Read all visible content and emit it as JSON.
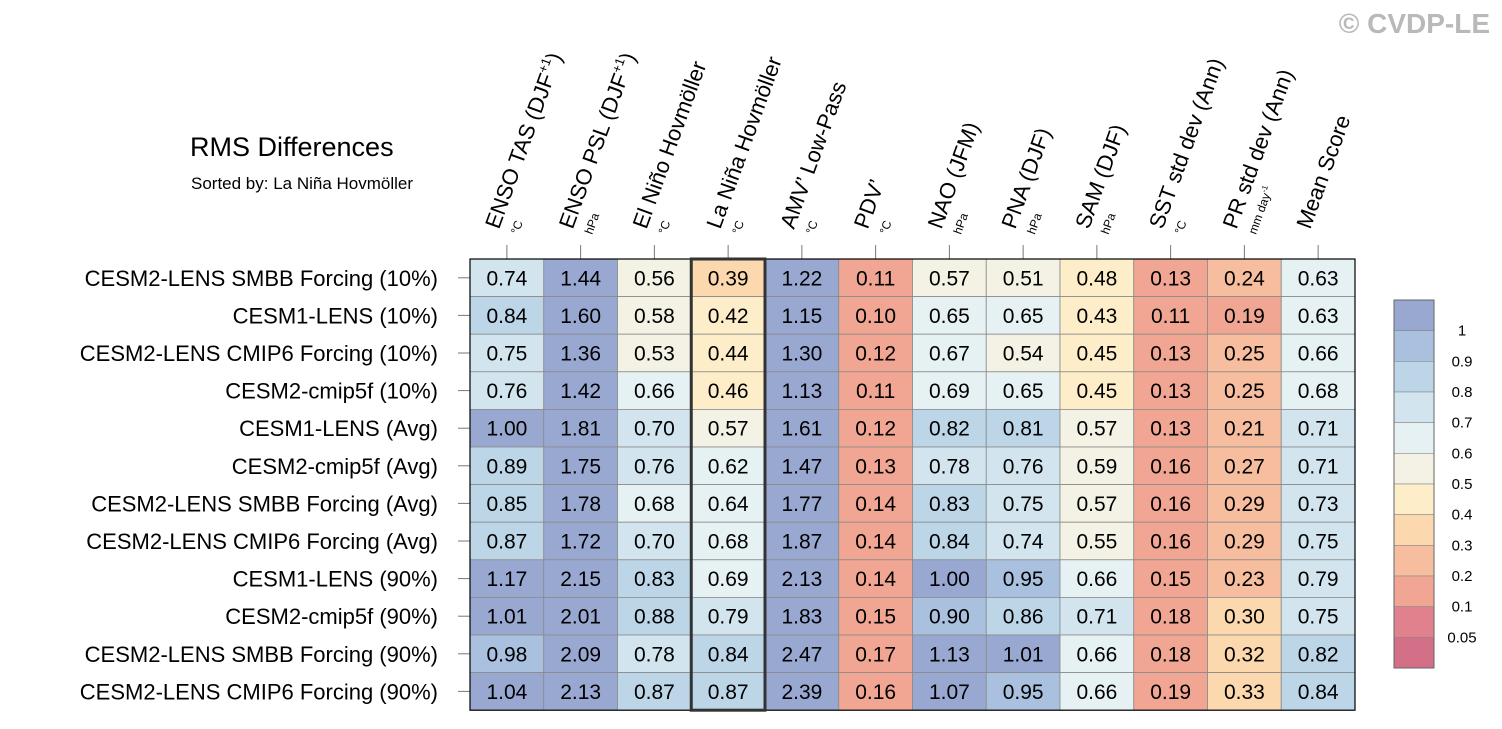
{
  "copyright": "© CVDP-LE",
  "chart_data": {
    "type": "heatmap",
    "title": "RMS Differences",
    "subtitle": "Sorted by: La Niña Hovmöller",
    "sorted_column_index": 3,
    "columns": [
      {
        "name": "ENSO TAS (DJF",
        "sup": "+1",
        "close": ")",
        "unit": "°C"
      },
      {
        "name": "ENSO PSL (DJF",
        "sup": "+1",
        "close": ")",
        "unit": "hPa"
      },
      {
        "name": "El Niño Hovmöller",
        "sup": "",
        "close": "",
        "unit": "°C"
      },
      {
        "name": "La Niña Hovmöller",
        "sup": "",
        "close": "",
        "unit": "°C"
      },
      {
        "name": "AMV’ Low-Pass",
        "sup": "",
        "close": "",
        "unit": "°C"
      },
      {
        "name": "PDV’",
        "sup": "",
        "close": "",
        "unit": "°C"
      },
      {
        "name": "NAO (JFM)",
        "sup": "",
        "close": "",
        "unit": "hPa"
      },
      {
        "name": "PNA (DJF)",
        "sup": "",
        "close": "",
        "unit": "hPa"
      },
      {
        "name": "SAM (DJF)",
        "sup": "",
        "close": "",
        "unit": "hPa"
      },
      {
        "name": "SST std dev (Ann)",
        "sup": "",
        "close": "",
        "unit": "°C"
      },
      {
        "name": "PR std dev (Ann)",
        "sup": "",
        "close": "",
        "unit": "mm day",
        "unit_sup": "-1"
      },
      {
        "name": "Mean Score",
        "sup": "",
        "close": "",
        "unit": ""
      }
    ],
    "rows": [
      "CESM2-LENS SMBB Forcing (10%)",
      "CESM1-LENS (10%)",
      "CESM2-LENS CMIP6 Forcing (10%)",
      "CESM2-cmip5f (10%)",
      "CESM1-LENS (Avg)",
      "CESM2-cmip5f (Avg)",
      "CESM2-LENS SMBB Forcing (Avg)",
      "CESM2-LENS CMIP6 Forcing (Avg)",
      "CESM1-LENS (90%)",
      "CESM2-cmip5f (90%)",
      "CESM2-LENS SMBB Forcing (90%)",
      "CESM2-LENS CMIP6 Forcing (90%)"
    ],
    "values": [
      [
        "0.74",
        "1.44",
        "0.56",
        "0.39",
        "1.22",
        "0.11",
        "0.57",
        "0.51",
        "0.48",
        "0.13",
        "0.24",
        "0.63"
      ],
      [
        "0.84",
        "1.60",
        "0.58",
        "0.42",
        "1.15",
        "0.10",
        "0.65",
        "0.65",
        "0.43",
        "0.11",
        "0.19",
        "0.63"
      ],
      [
        "0.75",
        "1.36",
        "0.53",
        "0.44",
        "1.30",
        "0.12",
        "0.67",
        "0.54",
        "0.45",
        "0.13",
        "0.25",
        "0.66"
      ],
      [
        "0.76",
        "1.42",
        "0.66",
        "0.46",
        "1.13",
        "0.11",
        "0.69",
        "0.65",
        "0.45",
        "0.13",
        "0.25",
        "0.68"
      ],
      [
        "1.00",
        "1.81",
        "0.70",
        "0.57",
        "1.61",
        "0.12",
        "0.82",
        "0.81",
        "0.57",
        "0.13",
        "0.21",
        "0.71"
      ],
      [
        "0.89",
        "1.75",
        "0.76",
        "0.62",
        "1.47",
        "0.13",
        "0.78",
        "0.76",
        "0.59",
        "0.16",
        "0.27",
        "0.71"
      ],
      [
        "0.85",
        "1.78",
        "0.68",
        "0.64",
        "1.77",
        "0.14",
        "0.83",
        "0.75",
        "0.57",
        "0.16",
        "0.29",
        "0.73"
      ],
      [
        "0.87",
        "1.72",
        "0.70",
        "0.68",
        "1.87",
        "0.14",
        "0.84",
        "0.74",
        "0.55",
        "0.16",
        "0.29",
        "0.75"
      ],
      [
        "1.17",
        "2.15",
        "0.83",
        "0.69",
        "2.13",
        "0.14",
        "1.00",
        "0.95",
        "0.66",
        "0.15",
        "0.23",
        "0.79"
      ],
      [
        "1.01",
        "2.01",
        "0.88",
        "0.79",
        "1.83",
        "0.15",
        "0.90",
        "0.86",
        "0.71",
        "0.18",
        "0.30",
        "0.75"
      ],
      [
        "0.98",
        "2.09",
        "0.78",
        "0.84",
        "2.47",
        "0.17",
        "1.13",
        "1.01",
        "0.66",
        "0.18",
        "0.32",
        "0.82"
      ],
      [
        "1.04",
        "2.13",
        "0.87",
        "0.87",
        "2.39",
        "0.16",
        "1.07",
        "0.95",
        "0.66",
        "0.19",
        "0.33",
        "0.84"
      ]
    ],
    "legend": {
      "levels": [
        "0.05",
        "0.1",
        "0.2",
        "0.3",
        "0.4",
        "0.5",
        "0.6",
        "0.7",
        "0.8",
        "0.9",
        "1"
      ],
      "bins": [
        {
          "lo": 1.0,
          "color": "#99a8d1"
        },
        {
          "lo": 0.9,
          "color": "#a9c0de"
        },
        {
          "lo": 0.8,
          "color": "#bcd6e8"
        },
        {
          "lo": 0.7,
          "color": "#d2e5ef"
        },
        {
          "lo": 0.6,
          "color": "#e6f1f4"
        },
        {
          "lo": 0.5,
          "color": "#f3f2e4"
        },
        {
          "lo": 0.4,
          "color": "#fdeec9"
        },
        {
          "lo": 0.3,
          "color": "#fbd8ad"
        },
        {
          "lo": 0.2,
          "color": "#f7bd9f"
        },
        {
          "lo": 0.1,
          "color": "#f0a693"
        },
        {
          "lo": 0.05,
          "color": "#e0818d"
        },
        {
          "lo": 0.0,
          "color": "#d36f86"
        }
      ]
    }
  }
}
